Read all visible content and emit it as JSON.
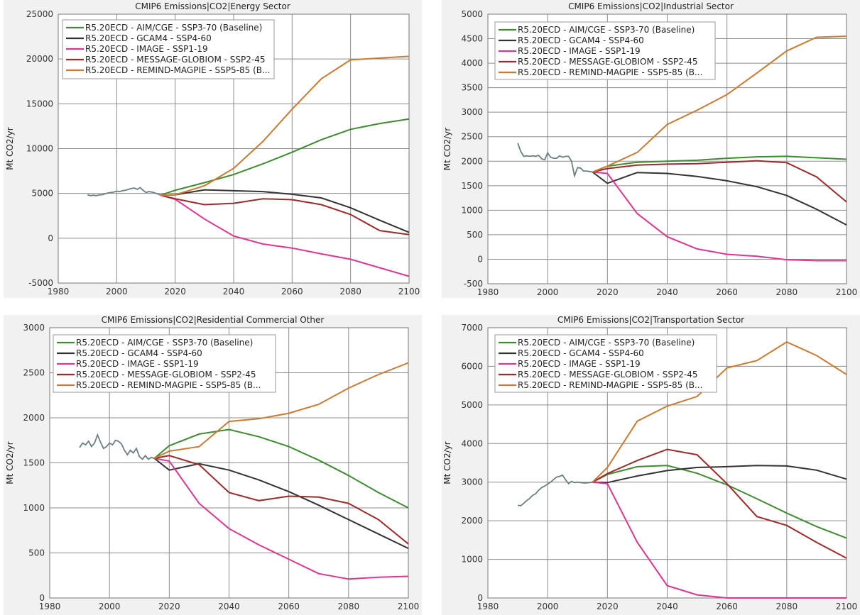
{
  "chart_data": [
    {
      "type": "line",
      "title": "CMIP6 Emissions|CO2|Energy Sector",
      "xlabel": "",
      "ylabel": "Mt CO2/yr",
      "xlim": [
        1980,
        2100
      ],
      "ylim": [
        -5000,
        25000
      ],
      "xticks": [
        1980,
        2000,
        2020,
        2040,
        2060,
        2080,
        2100
      ],
      "yticks": [
        -5000,
        0,
        5000,
        10000,
        15000,
        20000,
        25000
      ],
      "grid": true,
      "legend_position": "top-left",
      "history": {
        "color": "#6b7f7f",
        "x": [
          1990,
          1991,
          1992,
          1993,
          1994,
          1995,
          1996,
          1997,
          1998,
          1999,
          2000,
          2001,
          2002,
          2003,
          2004,
          2005,
          2006,
          2007,
          2008,
          2009,
          2010,
          2011,
          2012,
          2013,
          2014,
          2015
        ],
        "y": [
          4850,
          4750,
          4800,
          4750,
          4820,
          4850,
          4950,
          5050,
          5100,
          5150,
          5250,
          5200,
          5300,
          5350,
          5450,
          5550,
          5600,
          5450,
          5650,
          5350,
          5100,
          5200,
          5150,
          5050,
          4950,
          4800
        ]
      },
      "series": [
        {
          "name": "R5.20ECD - AIM/CGE - SSP3-70 (Baseline)",
          "color": "#3d8c2f",
          "x": [
            2015,
            2020,
            2030,
            2040,
            2050,
            2060,
            2070,
            2080,
            2090,
            2100
          ],
          "y": [
            4800,
            5350,
            6200,
            7100,
            8300,
            9600,
            11000,
            12150,
            12800,
            13300
          ]
        },
        {
          "name": "R5.20ECD - GCAM4 - SSP4-60",
          "color": "#333333",
          "x": [
            2015,
            2020,
            2030,
            2040,
            2050,
            2060,
            2070,
            2080,
            2090,
            2100
          ],
          "y": [
            4800,
            4850,
            5400,
            5300,
            5200,
            4900,
            4500,
            3400,
            2000,
            650
          ]
        },
        {
          "name": "R5.20ECD - IMAGE - SSP1-19",
          "color": "#e0358f",
          "x": [
            2015,
            2020,
            2030,
            2040,
            2050,
            2060,
            2070,
            2080,
            2090,
            2100
          ],
          "y": [
            4800,
            4350,
            2150,
            250,
            -650,
            -1100,
            -1750,
            -2350,
            -3300,
            -4250
          ]
        },
        {
          "name": "R5.20ECD - MESSAGE-GLOBIOM - SSP2-45",
          "color": "#9e2a2a",
          "x": [
            2015,
            2020,
            2030,
            2040,
            2050,
            2060,
            2070,
            2080,
            2090,
            2100
          ],
          "y": [
            4800,
            4400,
            3750,
            3900,
            4400,
            4300,
            3750,
            2650,
            850,
            400
          ]
        },
        {
          "name": "R5.20ECD - REMIND-MAGPIE - SSP5-85 (B...",
          "color": "#cc7a30",
          "x": [
            2015,
            2020,
            2030,
            2040,
            2050,
            2060,
            2070,
            2080,
            2090,
            2100
          ],
          "y": [
            4800,
            4850,
            5850,
            7800,
            10800,
            14400,
            17800,
            19900,
            20100,
            20300
          ]
        }
      ]
    },
    {
      "type": "line",
      "title": "CMIP6 Emissions|CO2|Industrial Sector",
      "xlabel": "",
      "ylabel": "Mt CO2/yr",
      "xlim": [
        1980,
        2100
      ],
      "ylim": [
        -500,
        5000
      ],
      "xticks": [
        1980,
        2000,
        2020,
        2040,
        2060,
        2080,
        2100
      ],
      "yticks": [
        -500,
        0,
        500,
        1000,
        1500,
        2000,
        2500,
        3000,
        3500,
        4000,
        4500,
        5000
      ],
      "grid": true,
      "legend_position": "top-left",
      "history": {
        "color": "#6b7f7f",
        "x": [
          1990,
          1991,
          1992,
          1993,
          1994,
          1995,
          1996,
          1997,
          1998,
          1999,
          2000,
          2001,
          2002,
          2003,
          2004,
          2005,
          2006,
          2007,
          2008,
          2009,
          2010,
          2011,
          2012,
          2013,
          2014,
          2015
        ],
        "y": [
          2370,
          2200,
          2100,
          2110,
          2100,
          2110,
          2100,
          2120,
          2050,
          2030,
          2170,
          2080,
          2060,
          2060,
          2110,
          2080,
          2100,
          2100,
          2000,
          1700,
          1870,
          1860,
          1800,
          1800,
          1790,
          1780
        ]
      },
      "series": [
        {
          "name": "R5.20ECD - AIM/CGE - SSP3-70 (Baseline)",
          "color": "#3d8c2f",
          "x": [
            2015,
            2020,
            2030,
            2040,
            2050,
            2060,
            2070,
            2080,
            2090,
            2100
          ],
          "y": [
            1780,
            1900,
            1980,
            2000,
            2020,
            2060,
            2090,
            2100,
            2070,
            2040
          ]
        },
        {
          "name": "R5.20ECD - GCAM4 - SSP4-60",
          "color": "#333333",
          "x": [
            2015,
            2020,
            2030,
            2040,
            2050,
            2060,
            2070,
            2080,
            2090,
            2100
          ],
          "y": [
            1780,
            1550,
            1770,
            1750,
            1690,
            1600,
            1480,
            1300,
            1020,
            700
          ]
        },
        {
          "name": "R5.20ECD - IMAGE - SSP1-19",
          "color": "#e0358f",
          "x": [
            2015,
            2020,
            2030,
            2040,
            2050,
            2060,
            2070,
            2080,
            2090,
            2100
          ],
          "y": [
            1780,
            1750,
            930,
            460,
            210,
            100,
            60,
            -10,
            -30,
            -30
          ]
        },
        {
          "name": "R5.20ECD - MESSAGE-GLOBIOM - SSP2-45",
          "color": "#9e2a2a",
          "x": [
            2015,
            2020,
            2030,
            2040,
            2050,
            2060,
            2070,
            2080,
            2090,
            2100
          ],
          "y": [
            1780,
            1850,
            1920,
            1940,
            1950,
            1980,
            2010,
            1970,
            1680,
            1170
          ]
        },
        {
          "name": "R5.20ECD - REMIND-MAGPIE - SSP5-85 (B...",
          "color": "#cc7a30",
          "x": [
            2015,
            2020,
            2030,
            2040,
            2050,
            2060,
            2070,
            2080,
            2090,
            2100
          ],
          "y": [
            1780,
            1900,
            2180,
            2750,
            3040,
            3360,
            3800,
            4250,
            4530,
            4550
          ]
        }
      ]
    },
    {
      "type": "line",
      "title": "CMIP6 Emissions|CO2|Residential Commercial Other",
      "xlabel": "",
      "ylabel": "Mt CO2/yr",
      "xlim": [
        1980,
        2100
      ],
      "ylim": [
        0,
        3000
      ],
      "xticks": [
        1980,
        2000,
        2020,
        2040,
        2060,
        2080,
        2100
      ],
      "yticks": [
        0,
        500,
        1000,
        1500,
        2000,
        2500,
        3000
      ],
      "grid": true,
      "legend_position": "top-left",
      "history": {
        "color": "#6b7f7f",
        "x": [
          1990,
          1991,
          1992,
          1993,
          1994,
          1995,
          1996,
          1997,
          1998,
          1999,
          2000,
          2001,
          2002,
          2003,
          2004,
          2005,
          2006,
          2007,
          2008,
          2009,
          2010,
          2011,
          2012,
          2013,
          2014,
          2015
        ],
        "y": [
          1670,
          1720,
          1700,
          1740,
          1680,
          1720,
          1810,
          1730,
          1660,
          1680,
          1720,
          1700,
          1750,
          1740,
          1710,
          1640,
          1590,
          1640,
          1610,
          1660,
          1570,
          1540,
          1580,
          1540,
          1560,
          1550
        ]
      },
      "series": [
        {
          "name": "R5.20ECD - AIM/CGE - SSP3-70 (Baseline)",
          "color": "#3d8c2f",
          "x": [
            2015,
            2020,
            2030,
            2040,
            2050,
            2060,
            2070,
            2080,
            2090,
            2100
          ],
          "y": [
            1550,
            1690,
            1820,
            1870,
            1790,
            1680,
            1530,
            1360,
            1170,
            1000
          ]
        },
        {
          "name": "R5.20ECD - GCAM4 - SSP4-60",
          "color": "#333333",
          "x": [
            2015,
            2020,
            2030,
            2040,
            2050,
            2060,
            2070,
            2080,
            2090,
            2100
          ],
          "y": [
            1550,
            1420,
            1490,
            1420,
            1310,
            1180,
            1030,
            870,
            710,
            550
          ]
        },
        {
          "name": "R5.20ECD - IMAGE - SSP1-19",
          "color": "#e0358f",
          "x": [
            2015,
            2020,
            2030,
            2040,
            2050,
            2060,
            2070,
            2080,
            2090,
            2100
          ],
          "y": [
            1550,
            1520,
            1050,
            770,
            590,
            430,
            270,
            210,
            230,
            240
          ]
        },
        {
          "name": "R5.20ECD - MESSAGE-GLOBIOM - SSP2-45",
          "color": "#9e2a2a",
          "x": [
            2015,
            2020,
            2030,
            2040,
            2050,
            2060,
            2070,
            2080,
            2090,
            2100
          ],
          "y": [
            1550,
            1580,
            1480,
            1170,
            1080,
            1130,
            1120,
            1050,
            870,
            600
          ]
        },
        {
          "name": "R5.20ECD - REMIND-MAGPIE - SSP5-85 (B...",
          "color": "#cc7a30",
          "x": [
            2015,
            2020,
            2030,
            2040,
            2050,
            2060,
            2070,
            2080,
            2090,
            2100
          ],
          "y": [
            1550,
            1630,
            1680,
            1960,
            1990,
            2050,
            2150,
            2330,
            2480,
            2610
          ]
        }
      ]
    },
    {
      "type": "line",
      "title": "CMIP6 Emissions|CO2|Transportation Sector",
      "xlabel": "",
      "ylabel": "Mt CO2/yr",
      "xlim": [
        1980,
        2100
      ],
      "ylim": [
        0,
        7000
      ],
      "xticks": [
        1980,
        2000,
        2020,
        2040,
        2060,
        2080,
        2100
      ],
      "yticks": [
        0,
        1000,
        2000,
        3000,
        4000,
        5000,
        6000,
        7000
      ],
      "grid": true,
      "legend_position": "top-left",
      "history": {
        "color": "#6b7f7f",
        "x": [
          1990,
          1991,
          1992,
          1993,
          1994,
          1995,
          1996,
          1997,
          1998,
          1999,
          2000,
          2001,
          2002,
          2003,
          2004,
          2005,
          2006,
          2007,
          2008,
          2009,
          2010,
          2011,
          2012,
          2013,
          2014,
          2015
        ],
        "y": [
          2400,
          2390,
          2450,
          2520,
          2580,
          2660,
          2700,
          2790,
          2860,
          2900,
          2950,
          3000,
          3070,
          3130,
          3150,
          3180,
          3060,
          2960,
          3020,
          2990,
          3000,
          2990,
          2980,
          2980,
          2990,
          3000
        ]
      },
      "series": [
        {
          "name": "R5.20ECD - AIM/CGE - SSP3-70 (Baseline)",
          "color": "#3d8c2f",
          "x": [
            2015,
            2020,
            2030,
            2040,
            2050,
            2060,
            2070,
            2080,
            2090,
            2100
          ],
          "y": [
            3000,
            3200,
            3400,
            3430,
            3230,
            2930,
            2570,
            2200,
            1850,
            1550
          ]
        },
        {
          "name": "R5.20ECD - GCAM4 - SSP4-60",
          "color": "#333333",
          "x": [
            2015,
            2020,
            2030,
            2040,
            2050,
            2060,
            2070,
            2080,
            2090,
            2100
          ],
          "y": [
            3000,
            2990,
            3160,
            3300,
            3380,
            3400,
            3430,
            3420,
            3310,
            3080
          ]
        },
        {
          "name": "R5.20ECD - IMAGE - SSP1-19",
          "color": "#e0358f",
          "x": [
            2015,
            2020,
            2030,
            2040,
            2050,
            2060,
            2070,
            2080,
            2090,
            2100
          ],
          "y": [
            3000,
            2960,
            1440,
            320,
            80,
            0,
            0,
            0,
            0,
            0
          ]
        },
        {
          "name": "R5.20ECD - MESSAGE-GLOBIOM - SSP2-45",
          "color": "#9e2a2a",
          "x": [
            2015,
            2020,
            2030,
            2040,
            2050,
            2060,
            2070,
            2080,
            2090,
            2100
          ],
          "y": [
            3000,
            3220,
            3560,
            3850,
            3710,
            2960,
            2110,
            1880,
            1440,
            1030
          ]
        },
        {
          "name": "R5.20ECD - REMIND-MAGPIE - SSP5-85 (B...",
          "color": "#cc7a30",
          "x": [
            2015,
            2020,
            2030,
            2040,
            2050,
            2060,
            2070,
            2080,
            2090,
            2100
          ],
          "y": [
            3000,
            3380,
            4580,
            4970,
            5220,
            5960,
            6150,
            6630,
            6280,
            5790
          ]
        }
      ]
    }
  ]
}
